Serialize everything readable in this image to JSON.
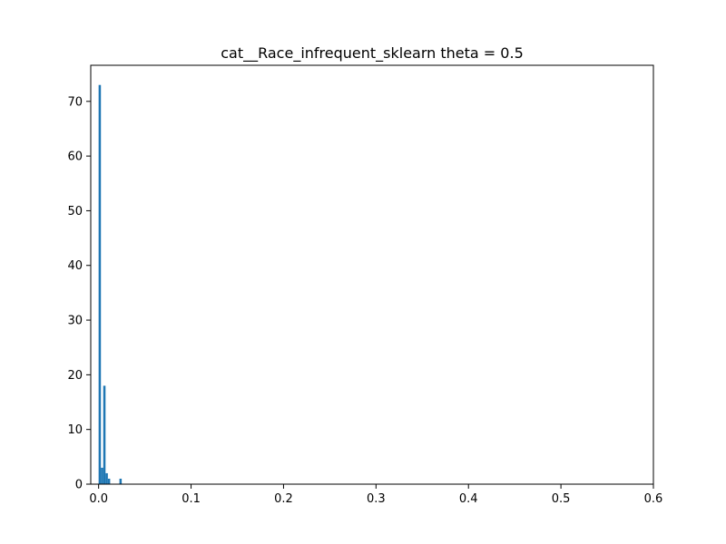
{
  "chart_data": {
    "type": "bar",
    "title": "cat__Race_infrequent_sklearn theta = 0.5",
    "xlabel": "",
    "ylabel": "",
    "xlim": [
      -0.0085,
      0.6
    ],
    "ylim": [
      0,
      76.6
    ],
    "xticks": [
      {
        "value": 0.0,
        "label": "0.0"
      },
      {
        "value": 0.1,
        "label": "0.1"
      },
      {
        "value": 0.2,
        "label": "0.2"
      },
      {
        "value": 0.3,
        "label": "0.3"
      },
      {
        "value": 0.4,
        "label": "0.4"
      },
      {
        "value": 0.5,
        "label": "0.5"
      },
      {
        "value": 0.6,
        "label": "0.6"
      }
    ],
    "yticks": [
      {
        "value": 0,
        "label": "0"
      },
      {
        "value": 10,
        "label": "10"
      },
      {
        "value": 20,
        "label": "20"
      },
      {
        "value": 30,
        "label": "30"
      },
      {
        "value": 40,
        "label": "40"
      },
      {
        "value": 50,
        "label": "50"
      },
      {
        "value": 60,
        "label": "60"
      },
      {
        "value": 70,
        "label": "70"
      }
    ],
    "grid": false,
    "legend": "none",
    "bar_color": "#1f77b4",
    "bins": [
      {
        "x0": 0.0,
        "x1": 0.0025,
        "count": 73
      },
      {
        "x0": 0.0025,
        "x1": 0.005,
        "count": 3
      },
      {
        "x0": 0.005,
        "x1": 0.0075,
        "count": 18
      },
      {
        "x0": 0.0075,
        "x1": 0.01,
        "count": 2
      },
      {
        "x0": 0.01,
        "x1": 0.0125,
        "count": 1
      },
      {
        "x0": 0.0125,
        "x1": 0.015,
        "count": 0
      },
      {
        "x0": 0.015,
        "x1": 0.0175,
        "count": 0
      },
      {
        "x0": 0.0175,
        "x1": 0.02,
        "count": 0
      },
      {
        "x0": 0.02,
        "x1": 0.0225,
        "count": 0
      },
      {
        "x0": 0.0225,
        "x1": 0.025,
        "count": 1
      }
    ]
  }
}
